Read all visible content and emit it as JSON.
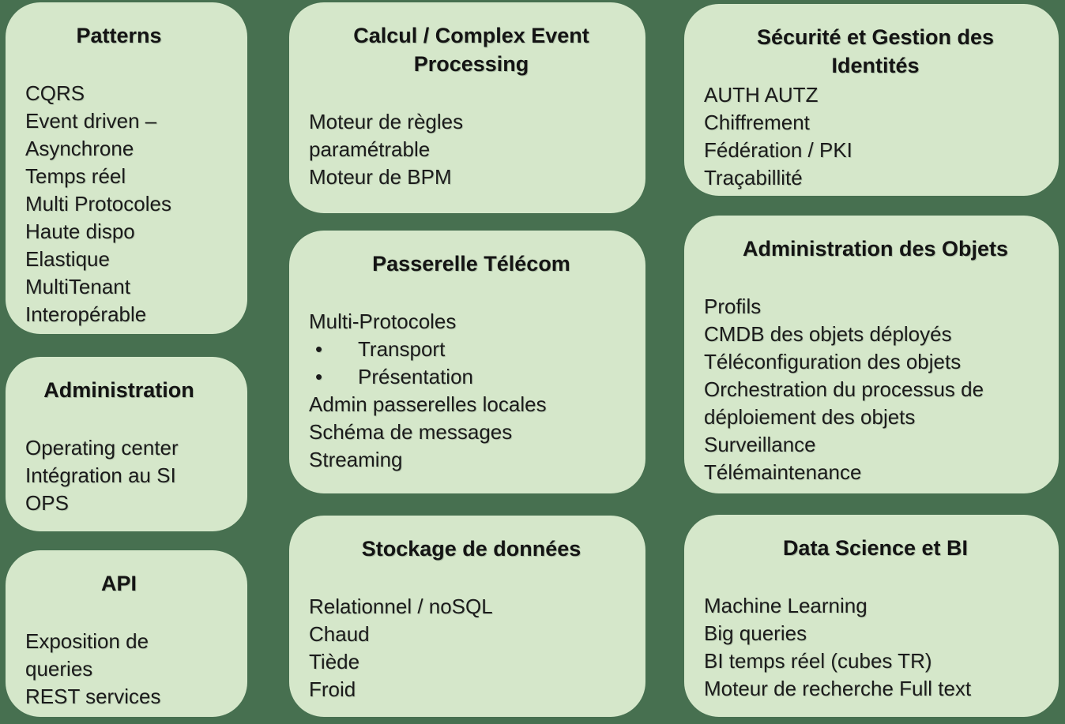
{
  "colors": {
    "background": "#477050",
    "box_fill": "#d5e7ca",
    "text": "#1b1b1b"
  },
  "boxes": {
    "patterns": {
      "title": "Patterns",
      "items": [
        "CQRS",
        "Event driven – Asynchrone",
        "Temps réel",
        "Multi Protocoles",
        "Haute dispo",
        "Elastique",
        "MultiTenant",
        "Interopérable"
      ]
    },
    "administration": {
      "title": "Administration",
      "items": [
        "Operating center",
        "Intégration au SI",
        "OPS"
      ]
    },
    "api": {
      "title": "API",
      "items": [
        "Exposition de queries",
        "REST services"
      ]
    },
    "calcul": {
      "title": "Calcul / Complex Event Processing",
      "items": [
        "Moteur de règles paramétrable",
        "Moteur de BPM"
      ]
    },
    "passerelle": {
      "title": "Passerelle Télécom",
      "items": [
        {
          "text": "Multi-Protocoles"
        },
        {
          "text": "Transport",
          "bullet": true
        },
        {
          "text": "Présentation",
          "bullet": true
        },
        {
          "text": "Admin passerelles locales"
        },
        {
          "text": "Schéma de messages"
        },
        {
          "text": "Streaming"
        }
      ]
    },
    "stockage": {
      "title": "Stockage de données",
      "items": [
        "Relationnel / noSQL",
        "Chaud",
        "Tiède",
        "Froid"
      ]
    },
    "securite": {
      "title": "Sécurité et Gestion des Identités",
      "items": [
        "AUTH AUTZ",
        "Chiffrement",
        "Fédération / PKI",
        "Traçabillité"
      ]
    },
    "admin_objets": {
      "title": "Administration des Objets",
      "items": [
        "Profils",
        "CMDB des objets déployés",
        "Téléconfiguration des objets",
        "Orchestration du processus de déploiement des objets",
        "Surveillance",
        "Télémaintenance"
      ]
    },
    "data_science": {
      "title": "Data Science et BI",
      "items": [
        "Machine Learning",
        "Big queries",
        "BI temps réel (cubes TR)",
        "Moteur de recherche Full text"
      ]
    }
  }
}
